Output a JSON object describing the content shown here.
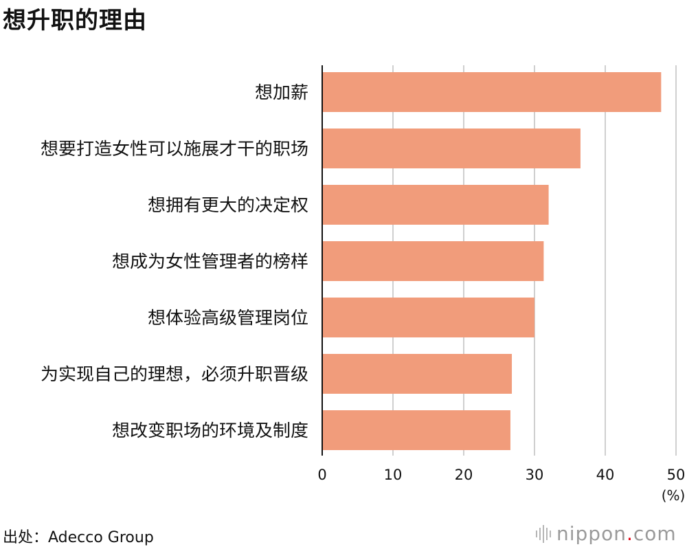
{
  "chart_data": {
    "type": "bar",
    "orientation": "horizontal",
    "title": "想升职的理由",
    "categories": [
      "想加薪",
      "想要打造女性可以施展才干的职场",
      "想拥有更大的决定权",
      "想成为女性管理者的榜样",
      "想体验高级管理岗位",
      "为实现自己的理想，必须升职晋级",
      "想改变职场的环境及制度"
    ],
    "values": [
      47.9,
      36.5,
      32.0,
      31.3,
      30.0,
      26.8,
      26.6
    ],
    "xlim": [
      0,
      50
    ],
    "xticks": [
      "0",
      "10",
      "20",
      "30",
      "40",
      "50"
    ],
    "unit_label": "(%)",
    "grid": true,
    "bar_color": "#f19c7b"
  },
  "source": "出处：Adecco Group",
  "brand": {
    "name": "nippon",
    "dot": ".",
    "tld": "com"
  }
}
